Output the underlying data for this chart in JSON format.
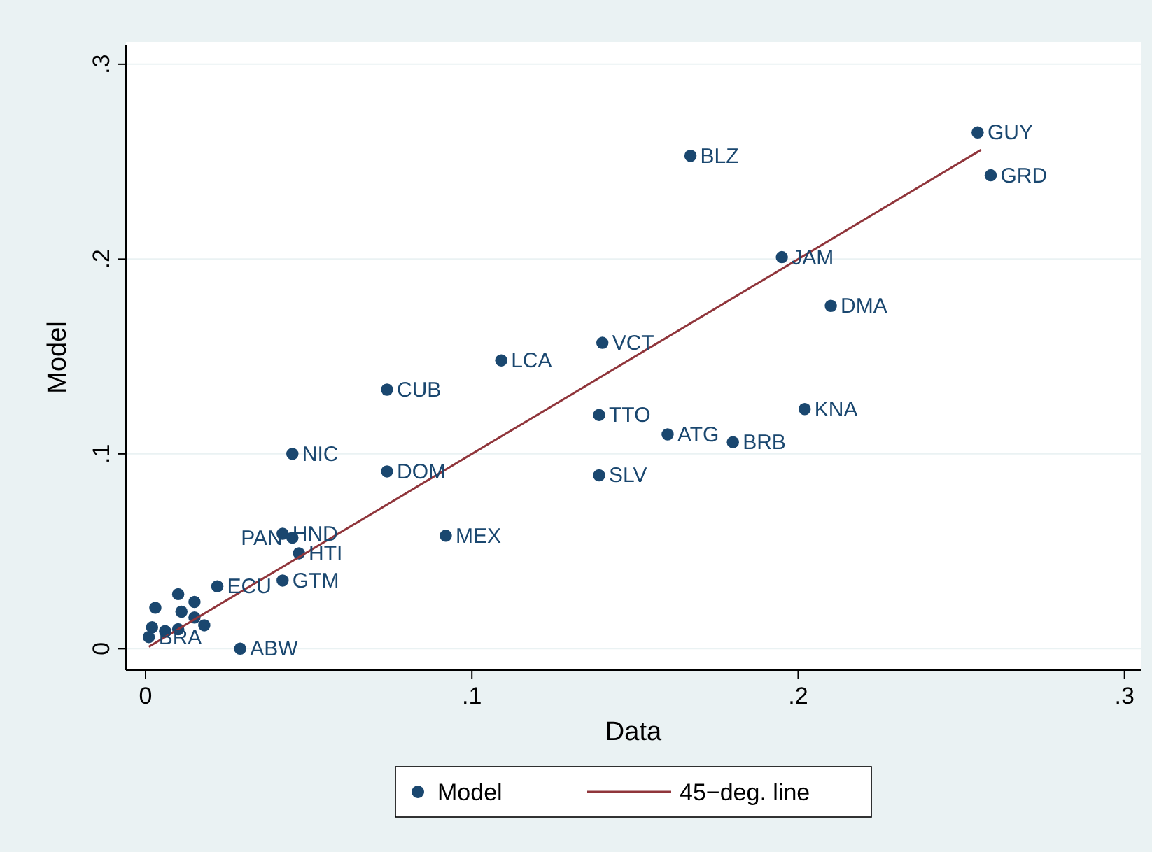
{
  "chart_data": {
    "type": "scatter",
    "xlabel": "Data",
    "ylabel": "Model",
    "xlim": [
      -0.006,
      0.305
    ],
    "ylim": [
      -0.011,
      0.31
    ],
    "xticks": [
      0,
      {
        "value": 0.1,
        "label": ".1"
      },
      {
        "value": 0.2,
        "label": ".2"
      },
      {
        "value": 0.3,
        "label": ".3"
      }
    ],
    "yticks": [
      0,
      {
        "value": 0.1,
        "label": ".1"
      },
      {
        "value": 0.2,
        "label": ".2"
      },
      {
        "value": 0.3,
        "label": ".3"
      }
    ],
    "grid": "y",
    "legend": "bottom",
    "marker": "circle",
    "series": [
      {
        "name": "Model",
        "color": "#1a476f",
        "x": [
          0.255,
          0.259,
          0.167,
          0.195,
          0.21,
          0.14,
          0.109,
          0.074,
          0.139,
          0.16,
          0.18,
          0.202,
          0.045,
          0.074,
          0.139,
          0.092,
          0.042,
          0.045,
          0.047,
          0.042,
          0.029,
          0.022,
          0.01,
          0.015,
          0.003,
          0.011,
          0.002,
          0.001,
          0.015,
          0.01,
          0.018,
          0.006
        ],
        "values": [
          0.265,
          0.243,
          0.253,
          0.201,
          0.176,
          0.157,
          0.148,
          0.133,
          0.12,
          0.11,
          0.106,
          0.123,
          0.1,
          0.091,
          0.089,
          0.058,
          0.059,
          0.057,
          0.049,
          0.035,
          0.0,
          0.032,
          0.028,
          0.024,
          0.021,
          0.019,
          0.011,
          0.006,
          0.016,
          0.01,
          0.012,
          0.009
        ]
      },
      {
        "name": "45−deg. line",
        "type": "line",
        "color": "#90353b",
        "line_style": "solid",
        "marker": "none",
        "x": [
          0.001,
          0.256
        ],
        "values": [
          0.001,
          0.256
        ]
      }
    ],
    "annotations": [
      {
        "text": "GUY",
        "x": 0.255,
        "y": 0.265
      },
      {
        "text": "GRD",
        "x": 0.259,
        "y": 0.243
      },
      {
        "text": "BLZ",
        "x": 0.167,
        "y": 0.253
      },
      {
        "text": "JAM",
        "x": 0.195,
        "y": 0.201
      },
      {
        "text": "DMA",
        "x": 0.21,
        "y": 0.176
      },
      {
        "text": "VCT",
        "x": 0.14,
        "y": 0.157
      },
      {
        "text": "LCA",
        "x": 0.109,
        "y": 0.148
      },
      {
        "text": "CUB",
        "x": 0.074,
        "y": 0.133
      },
      {
        "text": "TTO",
        "x": 0.139,
        "y": 0.12
      },
      {
        "text": "ATG",
        "x": 0.16,
        "y": 0.11
      },
      {
        "text": "BRB",
        "x": 0.18,
        "y": 0.106
      },
      {
        "text": "KNA",
        "x": 0.202,
        "y": 0.123
      },
      {
        "text": "NIC",
        "x": 0.045,
        "y": 0.1
      },
      {
        "text": "DOM",
        "x": 0.074,
        "y": 0.091
      },
      {
        "text": "SLV",
        "x": 0.139,
        "y": 0.089
      },
      {
        "text": "MEX",
        "x": 0.092,
        "y": 0.058
      },
      {
        "text": "HND",
        "x": 0.042,
        "y": 0.059
      },
      {
        "text": "PAN",
        "x": 0.045,
        "y": 0.057
      },
      {
        "text": "HTI",
        "x": 0.047,
        "y": 0.049
      },
      {
        "text": "GTM",
        "x": 0.042,
        "y": 0.035
      },
      {
        "text": "ABW",
        "x": 0.029,
        "y": 0.0
      },
      {
        "text": "ECU",
        "x": 0.022,
        "y": 0.032
      },
      {
        "text": "BRA",
        "x": 0.001,
        "y": 0.006
      }
    ]
  }
}
